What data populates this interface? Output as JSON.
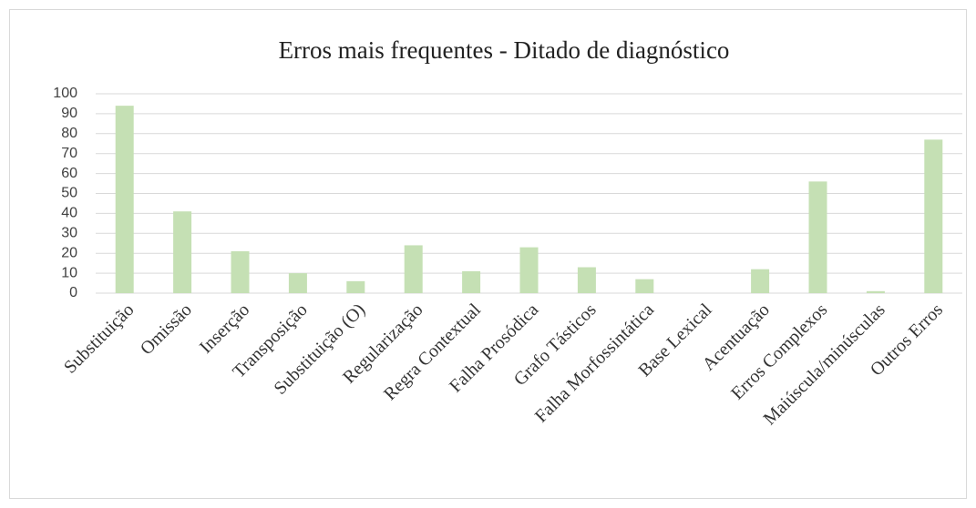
{
  "chart_data": {
    "type": "bar",
    "title": "Erros mais frequentes - Ditado de diagnóstico",
    "categories": [
      "Substituição",
      "Omissão",
      "Inserção",
      "Transposição",
      "Substituição (O)",
      "Regularização",
      "Regra Contextual",
      "Falha Prosódica",
      "Grafo Tásticos",
      "Falha Morfossintática",
      "Base Lexical",
      "Acentuação",
      "Erros Complexos",
      "Maiúscula/minúsculas",
      "Outros Erros"
    ],
    "values": [
      94,
      41,
      21,
      10,
      6,
      24,
      11,
      23,
      13,
      7,
      0,
      12,
      56,
      1,
      77
    ],
    "color": "#c5e0b4",
    "ylim": [
      0,
      100
    ],
    "yticks": [
      0,
      10,
      20,
      30,
      40,
      50,
      60,
      70,
      80,
      90,
      100
    ],
    "grid": true
  }
}
